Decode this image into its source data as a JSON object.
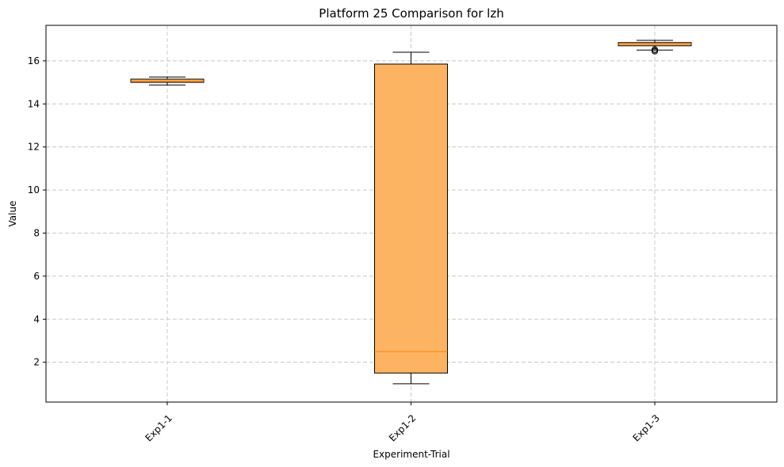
{
  "chart_data": {
    "type": "box",
    "title": "Platform 25 Comparison for lzh",
    "xlabel": "Experiment-Trial",
    "ylabel": "Value",
    "ylim": [
      0.15,
      17.65
    ],
    "yticks": [
      2,
      4,
      6,
      8,
      10,
      12,
      14,
      16
    ],
    "ytick_labels": [
      "2",
      "4",
      "6",
      "8",
      "10",
      "12",
      "14",
      "16"
    ],
    "grid": true,
    "categories": [
      "Exp1-1",
      "Exp1-2",
      "Exp1-3"
    ],
    "boxes": [
      {
        "name": "Exp1-1",
        "whisker_low": 14.88,
        "q1": 15.0,
        "median": 15.05,
        "q3": 15.15,
        "whisker_high": 15.25,
        "outliers": []
      },
      {
        "name": "Exp1-2",
        "whisker_low": 1.0,
        "q1": 1.5,
        "median": 2.5,
        "q3": 15.85,
        "whisker_high": 16.4,
        "outliers": []
      },
      {
        "name": "Exp1-3",
        "whisker_low": 16.5,
        "q1": 16.7,
        "median": 16.78,
        "q3": 16.85,
        "whisker_high": 16.95,
        "outliers": [
          16.45,
          16.52
        ]
      }
    ],
    "colors": {
      "box_fill": "#fdb462",
      "median": "#ff7f0e",
      "edge": "#000000",
      "grid": "#c8c8c8"
    }
  }
}
